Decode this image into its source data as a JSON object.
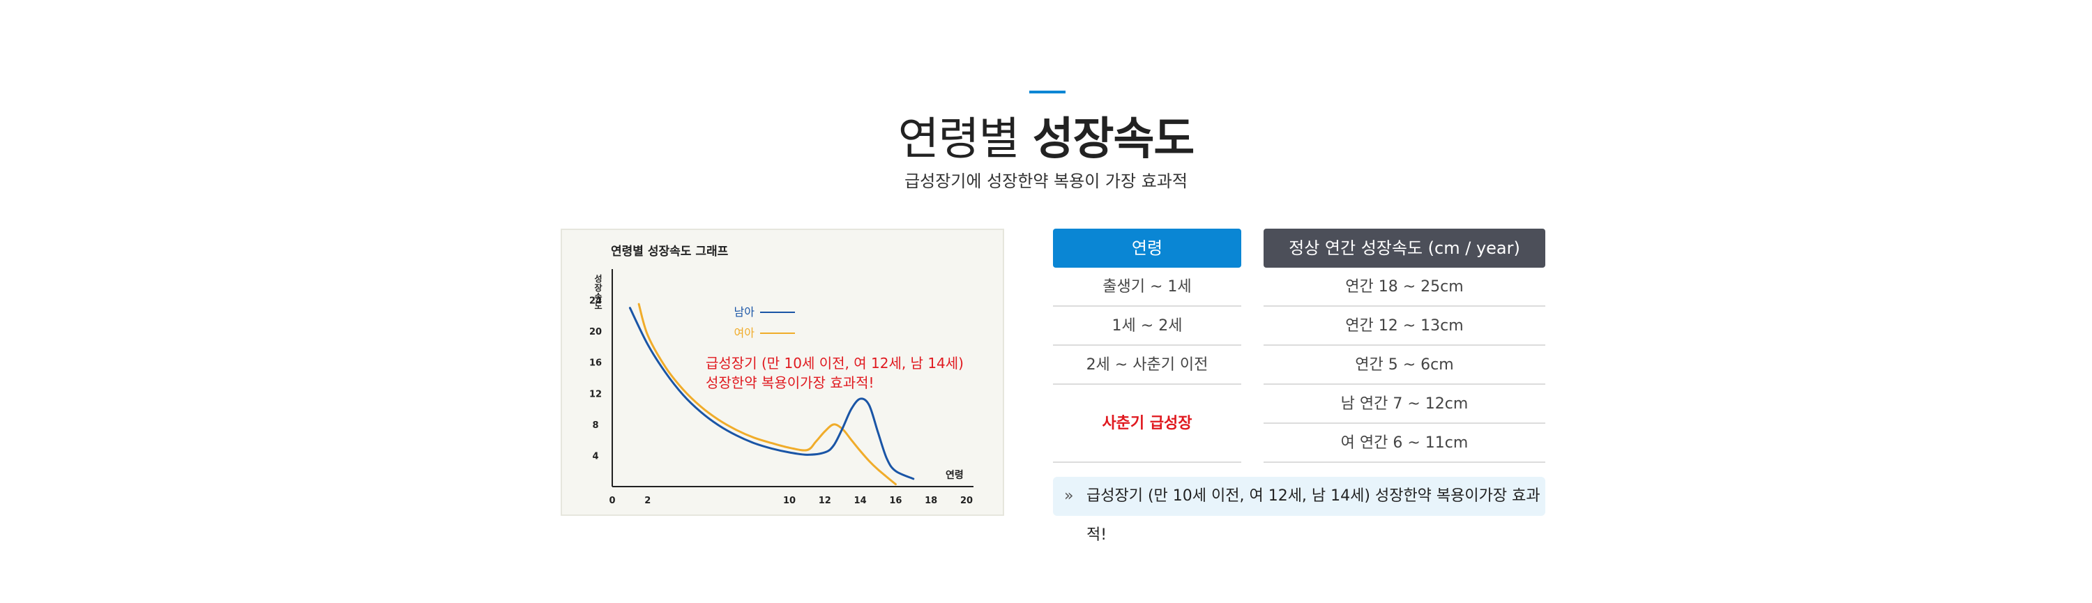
{
  "header": {
    "title_light": "연령별",
    "title_bold": "성장속도",
    "subtitle": "급성장기에 성장한약 복용이 가장 효과적"
  },
  "chart_data": {
    "type": "line",
    "title": "연령별 성장속도 그래프",
    "ylabel": "성장속도",
    "xlabel": "연령",
    "x_ticks": [
      0,
      2,
      10,
      12,
      14,
      16,
      18,
      20
    ],
    "y_ticks": [
      4,
      8,
      12,
      16,
      20,
      24
    ],
    "xlim": [
      0,
      20
    ],
    "ylim": [
      0,
      28
    ],
    "legend_position": "top-center",
    "series": [
      {
        "name": "남아",
        "color": "#1a55a6",
        "x": [
          1,
          2,
          3,
          4,
          5,
          6,
          7,
          8,
          9,
          10,
          11,
          12,
          12.5,
          13,
          13.5,
          14,
          14.5,
          15,
          15.5,
          16,
          17
        ],
        "y": [
          23,
          18.3,
          14.7,
          11.8,
          9.6,
          7.9,
          6.6,
          5.6,
          4.9,
          4.4,
          4.1,
          4.4,
          5.3,
          7.5,
          10,
          11.3,
          10.5,
          7,
          3.6,
          2,
          1
        ]
      },
      {
        "name": "여아",
        "color": "#f0ac2a",
        "x": [
          1.5,
          2,
          3,
          4,
          5,
          6,
          7,
          8,
          9,
          10,
          11,
          11.5,
          12,
          12.5,
          13,
          13.5,
          14,
          14.5,
          15,
          16
        ],
        "y": [
          23.5,
          19.5,
          15.4,
          12.5,
          10.3,
          8.6,
          7.3,
          6.3,
          5.6,
          5,
          4.7,
          5.8,
          7.1,
          8,
          7.4,
          6,
          4.6,
          3.3,
          2.2,
          0.3
        ]
      }
    ],
    "annotation": [
      "급성장기 (만 10세 이전, 여 12세, 남 14세)",
      "성장한약 복용이가장 효과적!"
    ]
  },
  "table": {
    "headers": [
      "연령",
      "정상 연간 성장속도 (cm / year)"
    ],
    "rows": [
      {
        "age": "출생기 ~ 1세",
        "rate": "연간 18 ~ 25cm"
      },
      {
        "age": "1세 ~ 2세",
        "rate": "연간 12 ~ 13cm"
      },
      {
        "age": "2세 ~ 사춘기 이전",
        "rate": "연간 5 ~ 6cm"
      }
    ],
    "puberty": {
      "age": "사춘기 급성장",
      "rates": [
        "남 연간 7 ~ 12cm",
        "여 연간 6 ~ 11cm"
      ]
    }
  },
  "note": {
    "icon": "double-chevron-right-icon",
    "text": "급성장기 (만 10세 이전, 여 12세, 남 14세) 성장한약 복용이가장 효과적!"
  },
  "colors": {
    "accent": "#0a86d4",
    "header_dark": "#4c4f59",
    "highlight_red": "#e0191f",
    "male_line": "#1a55a6",
    "female_line": "#f0ac2a"
  }
}
